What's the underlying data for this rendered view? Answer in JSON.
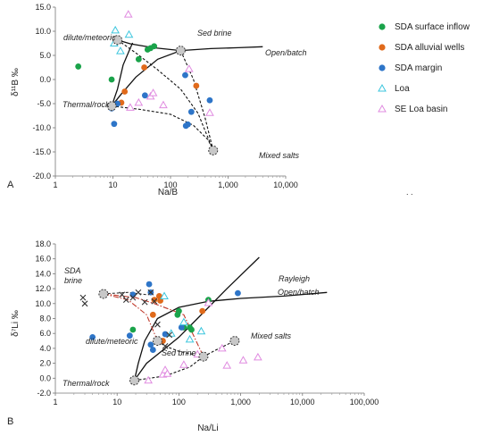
{
  "chart_data": [
    {
      "type": "scatter",
      "panel": "A",
      "xlabel": "Na/B",
      "ylabel": "δ¹¹B ‰",
      "xscale": "log",
      "xlim": [
        1,
        10000
      ],
      "ylim": [
        -20,
        15
      ],
      "xticks": [
        1,
        10,
        100,
        1000,
        10000
      ],
      "xticklabels": [
        "1",
        "10",
        "100",
        "1,000",
        "10,000"
      ],
      "yticks": [
        -20,
        -15,
        -10,
        -5,
        0,
        5,
        10,
        15
      ],
      "yticklabels": [
        "-20.0",
        "-15.0",
        "-10.0",
        "-5.0",
        "0.0",
        "5.0",
        "10.0",
        "15.0"
      ],
      "grid": false,
      "legend": {
        "position": "right",
        "entries": [
          "SDA surface inflow",
          "SDA alluvial wells",
          "SDA margin",
          "Loa",
          "SE  Loa basin"
        ]
      },
      "series": [
        {
          "name": "SDA surface inflow",
          "marker": "circle",
          "color": "#1aa34a",
          "x": [
            2.5,
            9.5,
            28,
            40,
            45,
            52
          ],
          "y": [
            2.7,
            0.0,
            4.2,
            6.2,
            6.5,
            6.9
          ]
        },
        {
          "name": "SDA alluvial wells",
          "marker": "circle",
          "color": "#e06a1b",
          "x": [
            14,
            16,
            35,
            280
          ],
          "y": [
            -4.8,
            -2.5,
            2.5,
            -1.3
          ]
        },
        {
          "name": "SDA margin",
          "marker": "circle",
          "color": "#2e75c8",
          "x": [
            9.5,
            10.5,
            12,
            36,
            180,
            185,
            200,
            230,
            480
          ],
          "y": [
            -6.0,
            -9.2,
            -5.0,
            -3.3,
            0.9,
            -9.6,
            -9.3,
            -6.7,
            -4.3
          ]
        },
        {
          "name": "Loa",
          "marker": "triangle-open",
          "color": "#3cc6de",
          "x": [
            10.5,
            11,
            13.5,
            19
          ],
          "y": [
            7.5,
            10.2,
            5.9,
            9.3
          ]
        },
        {
          "name": "SE  Loa basin",
          "marker": "triangle-open",
          "color": "#e08be0",
          "x": [
            18.5,
            20,
            28,
            45,
            50,
            75,
            210,
            480
          ],
          "y": [
            13.5,
            -5.8,
            -4.8,
            -3.5,
            -2.8,
            -5.3,
            2.2,
            -6.9
          ]
        }
      ],
      "end_members": [
        {
          "name": "dilute/meteoric",
          "x": 12,
          "y": 8.2
        },
        {
          "name": "Thermal/rock",
          "x": 9.5,
          "y": -5.5
        },
        {
          "name": "Sed brine",
          "x": 150,
          "y": 6.0
        },
        {
          "name": "Mixed salts",
          "x": 550,
          "y": -14.7
        }
      ],
      "curves": [
        {
          "style": "solid",
          "points": [
            [
              9.5,
              -5.5
            ],
            [
              12,
              -2
            ],
            [
              15,
              3
            ],
            [
              20,
              6.5
            ],
            [
              22,
              7.6
            ]
          ]
        },
        {
          "style": "solid",
          "points": [
            [
              12,
              8.2
            ],
            [
              20,
              7.4
            ],
            [
              50,
              6.6
            ],
            [
              150,
              6.0
            ]
          ]
        },
        {
          "style": "solid",
          "points": [
            [
              9.5,
              -5.5
            ],
            [
              14,
              -3
            ],
            [
              25,
              0.5
            ],
            [
              60,
              4.2
            ],
            [
              150,
              6.0
            ],
            [
              500,
              6.4
            ],
            [
              1500,
              6.6
            ],
            [
              4000,
              6.8
            ]
          ]
        },
        {
          "style": "dashed",
          "points": [
            [
              12,
              8.2
            ],
            [
              25,
              5.5
            ],
            [
              60,
              2
            ],
            [
              150,
              -2
            ],
            [
              300,
              -7
            ],
            [
              550,
              -14.7
            ]
          ]
        },
        {
          "style": "dashed",
          "points": [
            [
              150,
              6.0
            ],
            [
              250,
              0
            ],
            [
              400,
              -8
            ],
            [
              550,
              -14.7
            ]
          ]
        },
        {
          "style": "dashed",
          "points": [
            [
              9.5,
              -5.5
            ],
            [
              30,
              -6.2
            ],
            [
              100,
              -7.2
            ],
            [
              250,
              -9.5
            ],
            [
              450,
              -12.5
            ],
            [
              550,
              -14.7
            ]
          ]
        }
      ],
      "annotations": [
        {
          "text": "dilute/meteoric"
        },
        {
          "text": "Sed brine"
        },
        {
          "text": "Open/batch"
        },
        {
          "text": "Thermal/rock"
        },
        {
          "text": "Mixed salts"
        }
      ]
    },
    {
      "type": "scatter",
      "panel": "B",
      "xlabel": "Na/Li",
      "ylabel": "δ⁷Li ‰",
      "xscale": "log",
      "xlim": [
        1,
        100000
      ],
      "ylim": [
        -2,
        18
      ],
      "xticks": [
        1,
        10,
        100,
        1000,
        10000,
        100000
      ],
      "xticklabels": [
        "1",
        "10",
        "100",
        "1,000",
        "10,000",
        "100,000"
      ],
      "yticks": [
        -2,
        0,
        2,
        4,
        6,
        8,
        10,
        12,
        14,
        16,
        18
      ],
      "yticklabels": [
        "-2.0",
        "0.0",
        "2.0",
        "4.0",
        "6.0",
        "8.0",
        "10.0",
        "12.0",
        "14.0",
        "16.0",
        "18.0"
      ],
      "grid": false,
      "series": [
        {
          "name": "SDA surface inflow",
          "marker": "circle",
          "color": "#1aa34a",
          "x": [
            18,
            95,
            100,
            120,
            150,
            160,
            300
          ],
          "y": [
            6.5,
            8.5,
            9.0,
            6.8,
            6.8,
            6.5,
            10.5
          ]
        },
        {
          "name": "SDA alluvial wells",
          "marker": "circle",
          "color": "#e06a1b",
          "x": [
            38,
            40,
            48,
            50,
            55,
            240
          ],
          "y": [
            8.5,
            10.5,
            11.0,
            10.4,
            5.0,
            9.0
          ]
        },
        {
          "name": "SDA margin",
          "marker": "circle",
          "color": "#2e75c8",
          "x": [
            4,
            16,
            18,
            33,
            35,
            35,
            38,
            60,
            110,
            900
          ],
          "y": [
            5.5,
            5.7,
            11.2,
            12.6,
            11.5,
            4.5,
            3.8,
            5.9,
            6.8,
            11.4
          ]
        },
        {
          "name": "Loa",
          "marker": "triangle-open",
          "color": "#3cc6de",
          "x": [
            58,
            75,
            120,
            150,
            230
          ],
          "y": [
            11.0,
            6.0,
            7.5,
            5.2,
            6.3
          ]
        },
        {
          "name": "SE  Loa basin",
          "marker": "triangle-open",
          "color": "#e08be0",
          "x": [
            32,
            55,
            60,
            65,
            120,
            200,
            300,
            500,
            600,
            1100,
            1900
          ],
          "y": [
            -0.3,
            0.5,
            1.1,
            0.6,
            1.8,
            3.2,
            10.1,
            4.0,
            1.7,
            2.4,
            2.8
          ]
        },
        {
          "name": "",
          "marker": "x",
          "color": "#333333",
          "x": [
            2.8,
            3,
            12,
            14,
            18,
            22,
            28,
            35,
            40,
            45,
            60,
            70
          ],
          "y": [
            10.8,
            10.0,
            11.2,
            10.5,
            10.8,
            11.5,
            10.2,
            11.5,
            10.3,
            7.2,
            4.3,
            5.8
          ]
        }
      ],
      "end_members": [
        {
          "name": "SDA brine",
          "x": 6,
          "y": 11.3
        },
        {
          "name": "dilute/meteoric",
          "x": 45,
          "y": 5.0
        },
        {
          "name": "Sed brine",
          "x": 250,
          "y": 2.9
        },
        {
          "name": "Thermal/rock",
          "x": 19,
          "y": -0.3
        },
        {
          "name": "Mixed salts",
          "x": 800,
          "y": 5.0
        }
      ],
      "curves": [
        {
          "style": "solid",
          "points": [
            [
              19,
              -0.3
            ],
            [
              22,
              2
            ],
            [
              28,
              5
            ],
            [
              45,
              8
            ],
            [
              100,
              9.5
            ],
            [
              300,
              10.3
            ],
            [
              1000,
              10.7
            ],
            [
              5000,
              11.0
            ],
            [
              25000,
              11.5
            ]
          ]
        },
        {
          "style": "solid",
          "points": [
            [
              19,
              -0.3
            ],
            [
              30,
              2
            ],
            [
              60,
              4
            ],
            [
              100,
              5.5
            ],
            [
              200,
              8
            ],
            [
              600,
              12
            ],
            [
              2000,
              16.2
            ]
          ]
        },
        {
          "style": "dashed",
          "points": [
            [
              45,
              5.0
            ],
            [
              60,
              4.3
            ],
            [
              100,
              3.6
            ],
            [
              250,
              2.9
            ]
          ]
        },
        {
          "style": "dashed",
          "points": [
            [
              19,
              -0.3
            ],
            [
              60,
              0.3
            ],
            [
              150,
              1.5
            ],
            [
              250,
              2.9
            ]
          ]
        },
        {
          "style": "dashed",
          "points": [
            [
              250,
              2.9
            ],
            [
              400,
              3.8
            ],
            [
              800,
              5.0
            ]
          ]
        },
        {
          "style": "dashdot",
          "color": "#c0392b",
          "points": [
            [
              6,
              11.3
            ],
            [
              20,
              10.8
            ],
            [
              40,
              10.0
            ],
            [
              120,
              8.5
            ],
            [
              250,
              2.9
            ]
          ]
        },
        {
          "style": "dashdot",
          "color": "#c0392b",
          "points": [
            [
              6,
              11.3
            ],
            [
              15,
              10.5
            ],
            [
              30,
              8.5
            ],
            [
              45,
              5.0
            ]
          ]
        },
        {
          "style": "dashed",
          "color": "#333333",
          "points": [
            [
              6,
              11.3
            ],
            [
              15,
              11.5
            ],
            [
              30,
              11.2
            ]
          ]
        }
      ],
      "annotations": [
        {
          "text": "SDA brine"
        },
        {
          "text": "Rayleigh"
        },
        {
          "text": "Open/batch"
        },
        {
          "text": "dilute/meteoric"
        },
        {
          "text": "Sed brine"
        },
        {
          "text": "Mixed salts"
        },
        {
          "text": "Thermal/rock"
        }
      ]
    }
  ],
  "figure": {
    "panel_a_letter": "A",
    "panel_b_letter": "B",
    "stray_mark": ". ."
  }
}
